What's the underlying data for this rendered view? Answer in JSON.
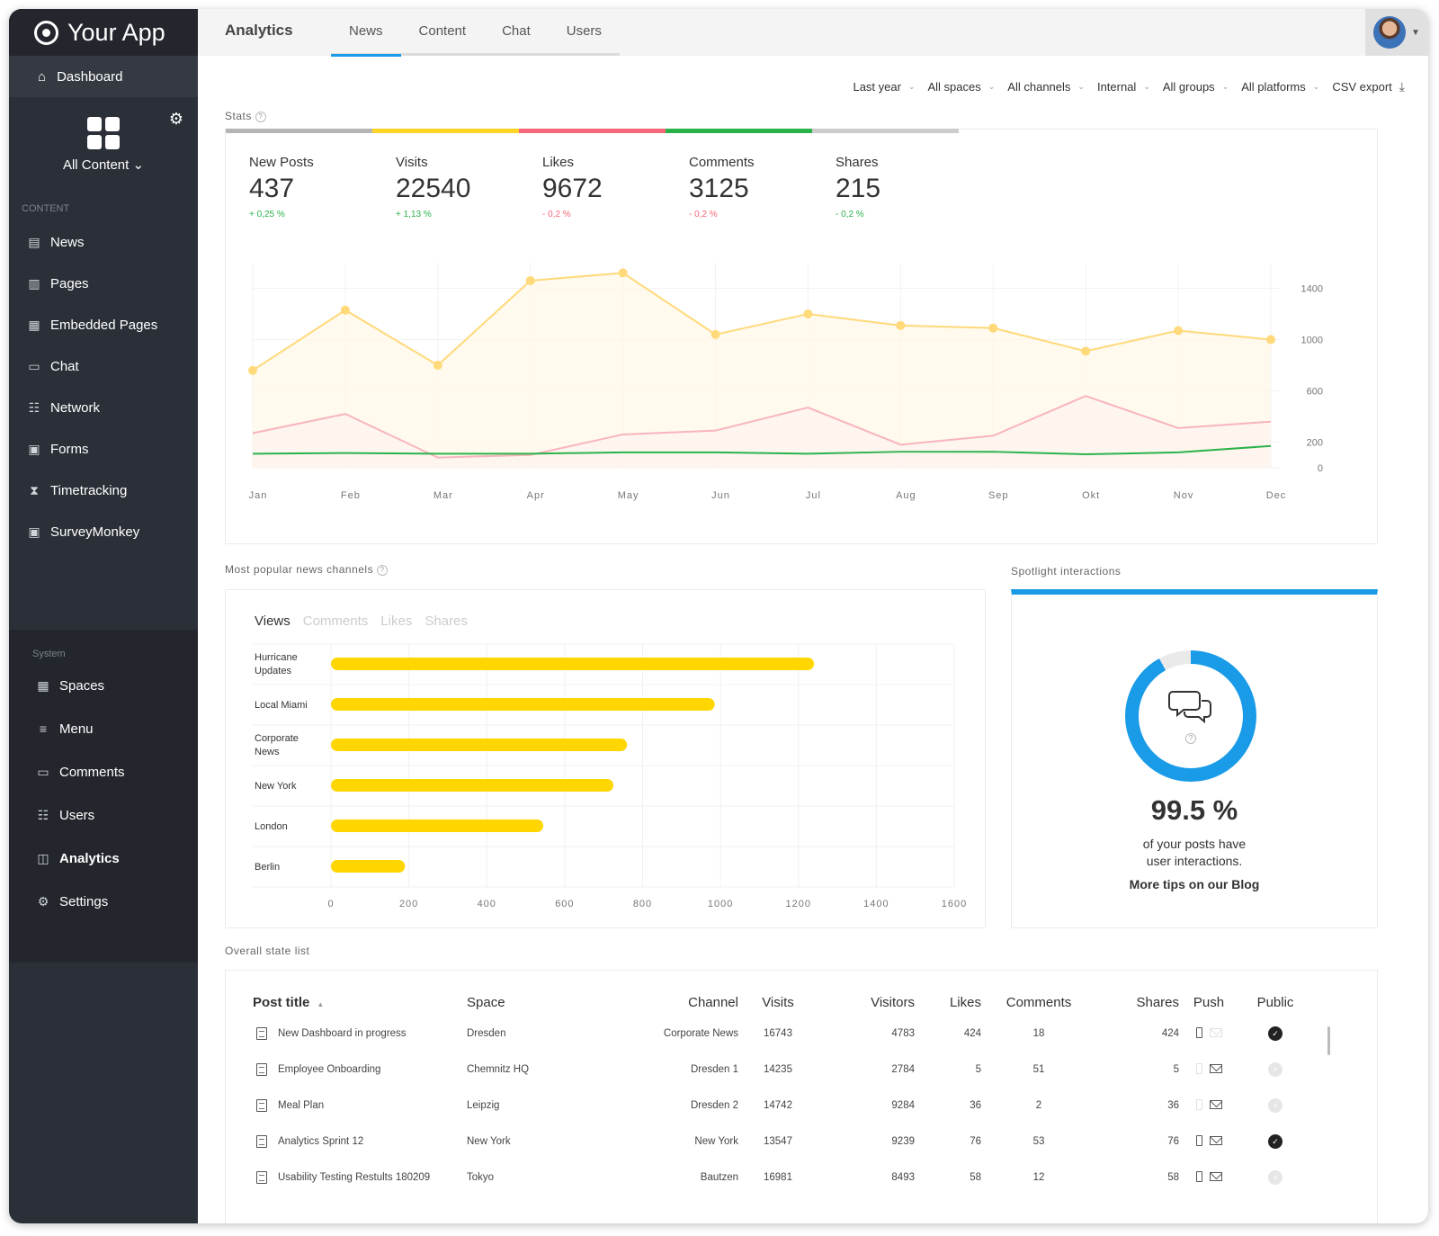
{
  "app": {
    "name": "Your App"
  },
  "sidebar": {
    "dashboard": "Dashboard",
    "content_switch": "All Content",
    "content_label": "CONTENT",
    "content_items": [
      {
        "label": "News",
        "icon": "news-icon"
      },
      {
        "label": "Pages",
        "icon": "pages-icon"
      },
      {
        "label": "Embedded Pages",
        "icon": "embedded-pages-icon"
      },
      {
        "label": "Chat",
        "icon": "chat-icon"
      },
      {
        "label": "Network",
        "icon": "network-icon"
      },
      {
        "label": "Forms",
        "icon": "forms-icon"
      },
      {
        "label": "Timetracking",
        "icon": "hourglass-icon"
      },
      {
        "label": "SurveyMonkey",
        "icon": "survey-icon"
      }
    ],
    "system_label": "System",
    "system_items": [
      {
        "label": "Spaces",
        "icon": "grid-icon"
      },
      {
        "label": "Menu",
        "icon": "menu-icon"
      },
      {
        "label": "Comments",
        "icon": "comments-icon"
      },
      {
        "label": "Users",
        "icon": "users-icon"
      },
      {
        "label": "Analytics",
        "icon": "analytics-icon",
        "active": true
      },
      {
        "label": "Settings",
        "icon": "gear-icon"
      }
    ]
  },
  "topbar": {
    "title": "Analytics",
    "tabs": [
      {
        "label": "News",
        "active": true
      },
      {
        "label": "Content"
      },
      {
        "label": "Chat"
      },
      {
        "label": "Users"
      }
    ]
  },
  "filters": [
    "Last year",
    "All spaces",
    "All channels",
    "Internal",
    "All groups",
    "All platforms"
  ],
  "csv_export": "CSV export",
  "stats": {
    "label": "Stats",
    "items": [
      {
        "name": "New Posts",
        "value": "437",
        "delta": "+ 0,25 %",
        "color": "#b5b5b5",
        "delta_color": "#2bb34b"
      },
      {
        "name": "Visits",
        "value": "22540",
        "delta": "+ 1,13 %",
        "color": "#ffd426",
        "delta_color": "#2bb34b"
      },
      {
        "name": "Likes",
        "value": "9672",
        "delta": "- 0,2 %",
        "color": "#f5677a",
        "delta_color": "#f5677a"
      },
      {
        "name": "Comments",
        "value": "3125",
        "delta": "- 0,2 %",
        "color": "#2bb34b",
        "delta_color": "#f5677a"
      },
      {
        "name": "Shares",
        "value": "215",
        "delta": "- 0,2 %",
        "color": "#cccccc",
        "delta_color": "#2bb34b"
      }
    ]
  },
  "chart_data": [
    {
      "type": "line",
      "x": [
        "Jan",
        "Feb",
        "Mar",
        "Apr",
        "May",
        "Jun",
        "Jul",
        "Aug",
        "Sep",
        "Okt",
        "Nov",
        "Dec"
      ],
      "yticks": [
        1400,
        1000,
        600,
        200,
        0
      ],
      "ylim": [
        0,
        1600
      ],
      "series": [
        {
          "color": "#ffd97a",
          "values": [
            760,
            1230,
            800,
            1460,
            1520,
            1040,
            1200,
            1110,
            1090,
            910,
            1070,
            1000
          ]
        },
        {
          "color": "#f8b4bd",
          "values": [
            270,
            420,
            80,
            100,
            260,
            290,
            470,
            180,
            250,
            560,
            310,
            360
          ]
        },
        {
          "color": "#2bb34b",
          "values": [
            110,
            115,
            110,
            110,
            120,
            120,
            110,
            125,
            125,
            105,
            120,
            170
          ]
        }
      ]
    },
    {
      "type": "bar",
      "orientation": "horizontal",
      "categories": [
        "Hurricane Updates",
        "Local Miami",
        "Corporate News",
        "New York",
        "London",
        "Berlin"
      ],
      "values": [
        1240,
        985,
        760,
        725,
        545,
        190
      ],
      "xticks": [
        0,
        200,
        400,
        600,
        800,
        1000,
        1200,
        1400,
        1600
      ],
      "xlim": [
        0,
        1600
      ],
      "color": "#ffd600"
    }
  ],
  "popular": {
    "label": "Most popular news channels",
    "tabs": [
      "Views",
      "Comments",
      "Likes",
      "Shares"
    ]
  },
  "spotlight": {
    "label": "Spotlight interactions",
    "percent": "99.5 %",
    "text_line1": "of your posts have",
    "text_line2": "user interactions.",
    "link": "More tips on our Blog",
    "color": "#1a9be8"
  },
  "table": {
    "label": "Overall state list",
    "headers": [
      "Post title",
      "Space",
      "Channel",
      "Visits",
      "Visitors",
      "Likes",
      "Comments",
      "Shares",
      "Push",
      "Public"
    ],
    "rows": [
      {
        "title": "New Dashboard in progress",
        "space": "Dresden",
        "channel": "Corporate News",
        "visits": "16743",
        "visitors": "4783",
        "likes": "424",
        "comments": "18",
        "shares": "424",
        "push_phone": true,
        "push_mail": false,
        "public": true
      },
      {
        "title": "Employee Onboarding",
        "space": "Chemnitz HQ",
        "channel": "Dresden 1",
        "visits": "14235",
        "visitors": "2784",
        "likes": "5",
        "comments": "51",
        "shares": "5",
        "push_phone": false,
        "push_mail": true,
        "public": false
      },
      {
        "title": "Meal Plan",
        "space": "Leipzig",
        "channel": "Dresden 2",
        "visits": "14742",
        "visitors": "9284",
        "likes": "36",
        "comments": "2",
        "shares": "36",
        "push_phone": false,
        "push_mail": true,
        "public": false
      },
      {
        "title": "Analytics Sprint 12",
        "space": "New York",
        "channel": "New York",
        "visits": "13547",
        "visitors": "9239",
        "likes": "76",
        "comments": "53",
        "shares": "76",
        "push_phone": true,
        "push_mail": true,
        "public": true
      },
      {
        "title": "Usability Testing Restults 180209",
        "space": "Tokyo",
        "channel": "Bautzen",
        "visits": "16981",
        "visitors": "8493",
        "likes": "58",
        "comments": "12",
        "shares": "58",
        "push_phone": true,
        "push_mail": true,
        "public": false
      }
    ]
  }
}
